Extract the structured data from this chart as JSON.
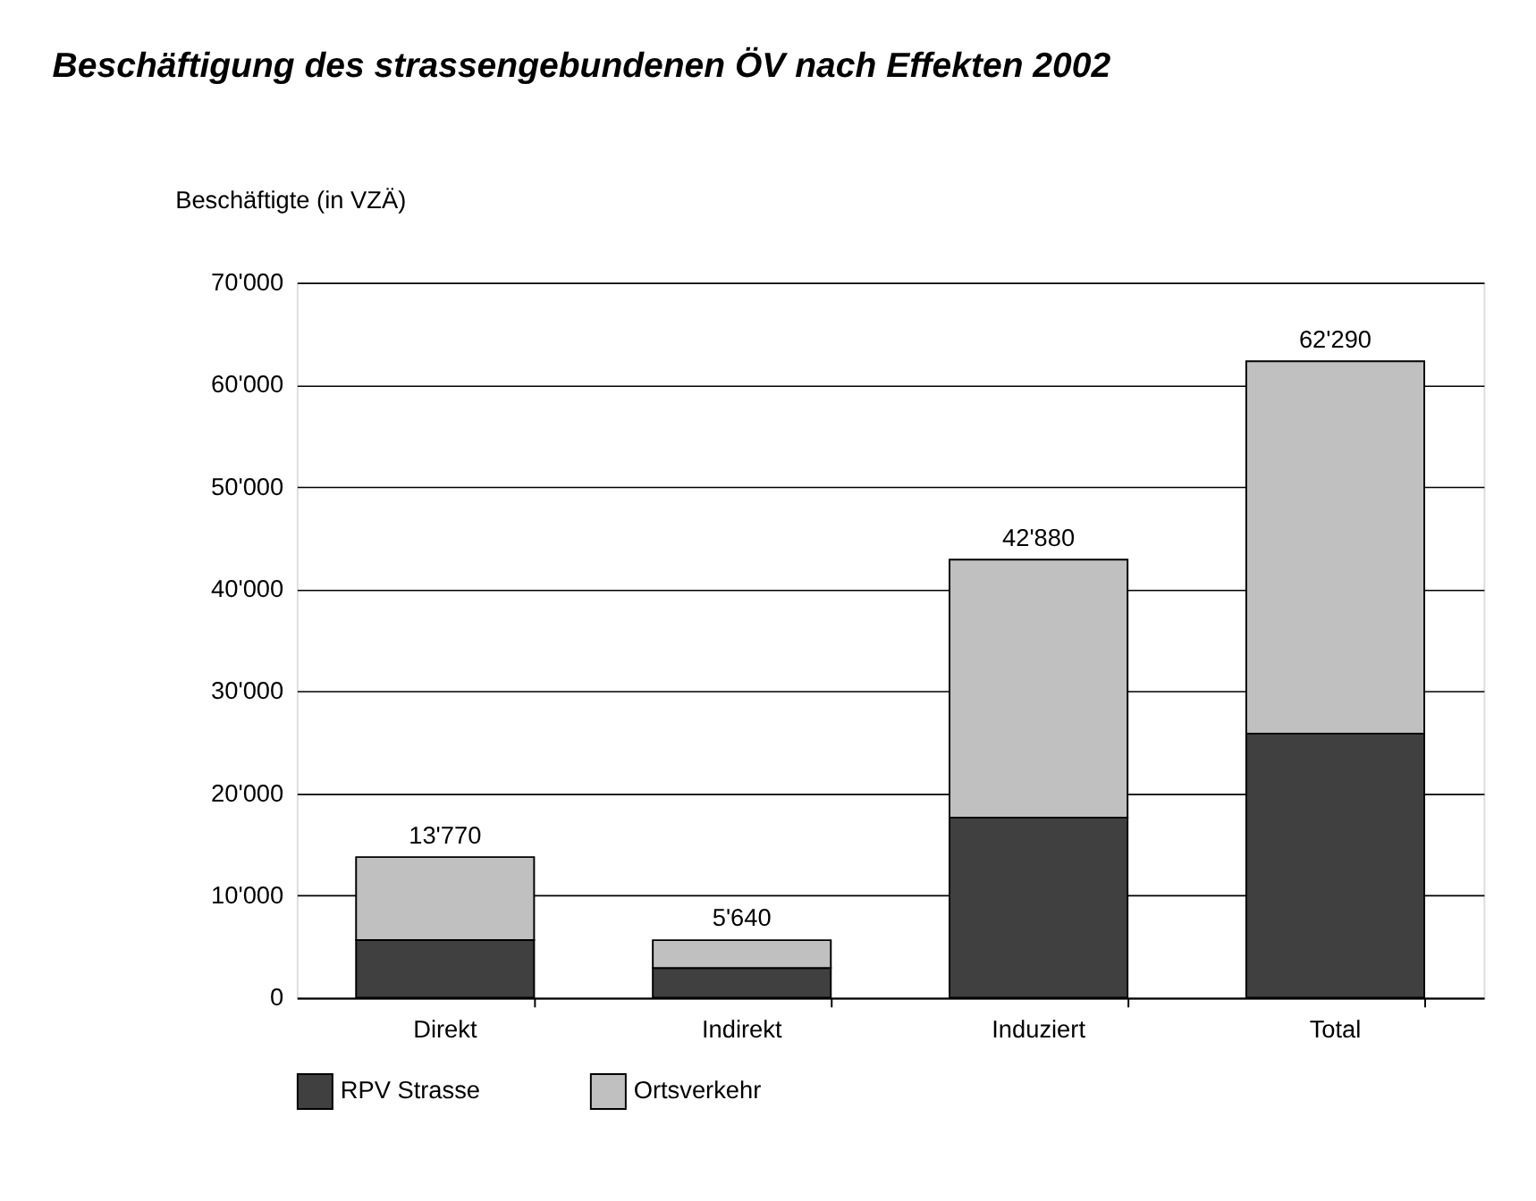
{
  "chart_data": {
    "type": "bar",
    "title": "Beschäftigung des strassengebundenen ÖV nach Effekten 2002",
    "ylabel": "Beschäftigte (in VZÄ)",
    "categories": [
      "Direkt",
      "Indirekt",
      "Induziert",
      "Total"
    ],
    "stacked": true,
    "series": [
      {
        "name": "RPV Strasse",
        "color": "#404040",
        "values": [
          5650,
          2910,
          17640,
          25860
        ]
      },
      {
        "name": "Ortsverkehr",
        "color": "#c0c0c0",
        "values": [
          8120,
          2730,
          25240,
          36430
        ]
      }
    ],
    "totals": [
      "13'770",
      "5'640",
      "42'880",
      "62'290"
    ],
    "ylim": [
      0,
      70000
    ],
    "yticks": [
      0,
      {
        "value": 10000,
        "label": "10'000"
      },
      {
        "value": 20000,
        "label": "20'000"
      },
      {
        "value": 30000,
        "label": "30'000"
      },
      {
        "value": 40000,
        "label": "40'000"
      },
      {
        "value": 50000,
        "label": "50'000"
      },
      {
        "value": 60000,
        "label": "60'000"
      },
      {
        "value": 70000,
        "label": "70'000"
      }
    ],
    "grid": "y",
    "legend": "bottom"
  }
}
